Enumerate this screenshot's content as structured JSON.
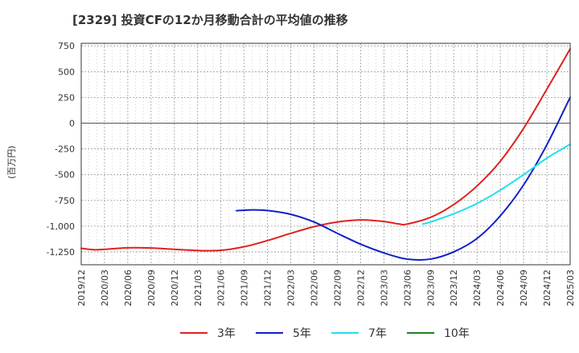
{
  "chart_data": {
    "type": "line",
    "title": "[2329]  投資CFの12か月移動合計の平均値の推移",
    "ylabel": "(百万円)",
    "xlabel": "",
    "ylim": [
      -1375,
      775
    ],
    "yticks": [
      750,
      500,
      250,
      0,
      -250,
      -500,
      -750,
      -1000,
      -1250
    ],
    "ytick_labels": [
      "750",
      "500",
      "250",
      "0",
      "-250",
      "-500",
      "-750",
      "-1,000",
      "-1,250"
    ],
    "xlim": [
      "2019-12",
      "2025-03"
    ],
    "xtick_labels": [
      "2019/12",
      "2020/03",
      "2020/06",
      "2020/09",
      "2020/12",
      "2021/03",
      "2021/06",
      "2021/09",
      "2021/12",
      "2022/03",
      "2022/06",
      "2022/09",
      "2022/12",
      "2023/03",
      "2023/06",
      "2023/09",
      "2023/12",
      "2024/03",
      "2024/06",
      "2024/09",
      "2024/12",
      "2025/03"
    ],
    "grid": true,
    "legend_position": "bottom",
    "series": [
      {
        "name": "3年",
        "color": "#e02020",
        "points": [
          [
            "2019-12",
            -1215
          ],
          [
            "2020-01",
            -1225
          ],
          [
            "2020-02",
            -1230
          ],
          [
            "2020-03",
            -1225
          ],
          [
            "2020-06",
            -1210
          ],
          [
            "2020-09",
            -1212
          ],
          [
            "2020-12",
            -1225
          ],
          [
            "2021-03",
            -1237
          ],
          [
            "2021-06",
            -1235
          ],
          [
            "2021-09",
            -1200
          ],
          [
            "2021-12",
            -1140
          ],
          [
            "2022-03",
            -1070
          ],
          [
            "2022-06",
            -1005
          ],
          [
            "2022-09",
            -960
          ],
          [
            "2022-12",
            -940
          ],
          [
            "2023-03",
            -955
          ],
          [
            "2023-05",
            -980
          ],
          [
            "2023-06",
            -980
          ],
          [
            "2023-09",
            -915
          ],
          [
            "2023-12",
            -790
          ],
          [
            "2024-03",
            -610
          ],
          [
            "2024-06",
            -370
          ],
          [
            "2024-09",
            -50
          ],
          [
            "2024-12",
            330
          ],
          [
            "2025-03",
            720
          ]
        ]
      },
      {
        "name": "5年",
        "color": "#1020c8",
        "points": [
          [
            "2021-08",
            -850
          ],
          [
            "2021-10",
            -842
          ],
          [
            "2021-12",
            -848
          ],
          [
            "2022-03",
            -885
          ],
          [
            "2022-06",
            -960
          ],
          [
            "2022-09",
            -1070
          ],
          [
            "2022-12",
            -1175
          ],
          [
            "2023-03",
            -1260
          ],
          [
            "2023-06",
            -1320
          ],
          [
            "2023-09",
            -1320
          ],
          [
            "2023-12",
            -1250
          ],
          [
            "2024-03",
            -1120
          ],
          [
            "2024-06",
            -900
          ],
          [
            "2024-09",
            -600
          ],
          [
            "2024-12",
            -210
          ],
          [
            "2025-03",
            250
          ]
        ]
      },
      {
        "name": "7年",
        "color": "#20e0f0",
        "points": [
          [
            "2023-08",
            -980
          ],
          [
            "2023-09",
            -960
          ],
          [
            "2023-12",
            -880
          ],
          [
            "2024-03",
            -780
          ],
          [
            "2024-06",
            -650
          ],
          [
            "2024-09",
            -500
          ],
          [
            "2024-12",
            -340
          ],
          [
            "2025-03",
            -205
          ]
        ]
      },
      {
        "name": "10年",
        "color": "#208020",
        "points": []
      }
    ]
  }
}
